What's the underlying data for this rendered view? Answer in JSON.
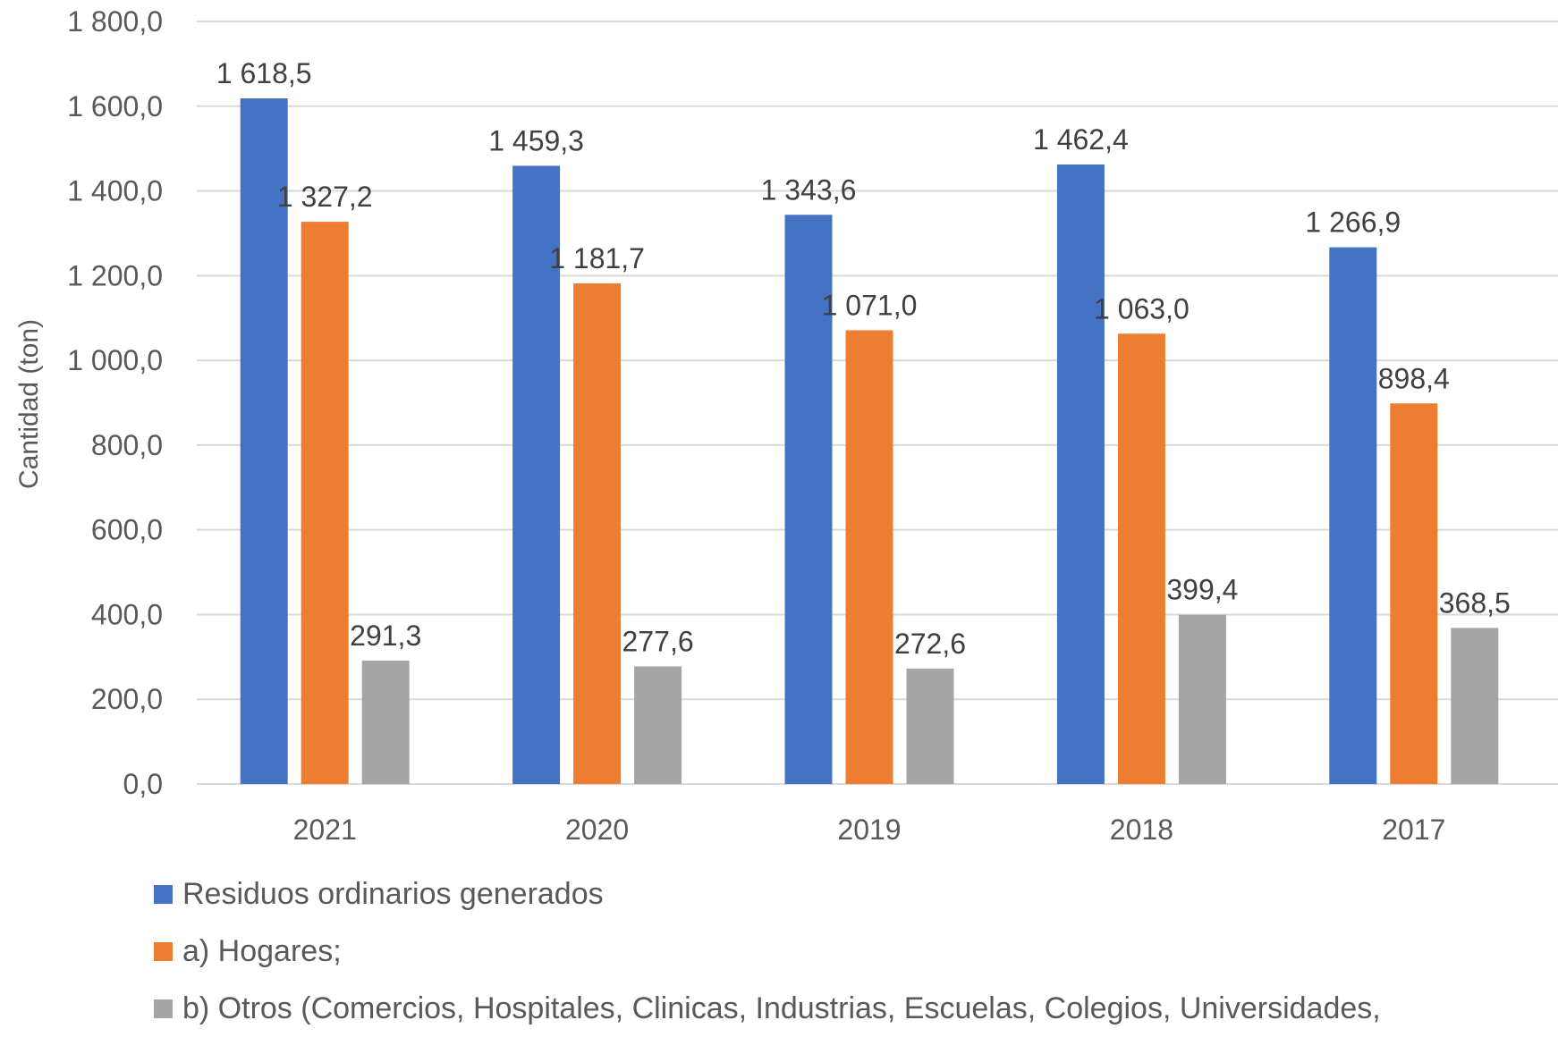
{
  "chart_data": {
    "type": "bar",
    "categories": [
      "2021",
      "2020",
      "2019",
      "2018",
      "2017"
    ],
    "series": [
      {
        "name": "Residuos ordinarios generados",
        "color": "#4472C4",
        "values": [
          1618.5,
          1459.3,
          1343.6,
          1462.4,
          1266.9
        ],
        "labels": [
          "1 618,5",
          "1 459,3",
          "1 343,6",
          "1 462,4",
          "1 266,9"
        ]
      },
      {
        "name": "a) Hogares;",
        "color": "#ED7D31",
        "values": [
          1327.2,
          1181.7,
          1071.0,
          1063.0,
          898.4
        ],
        "labels": [
          "1 327,2",
          "1 181,7",
          "1 071,0",
          "1 063,0",
          "898,4"
        ]
      },
      {
        "name": "b) Otros (Comercios, Hospitales, Clinicas, Industrias, Escuelas, Colegios, Universidades,",
        "color": "#A5A5A5",
        "values": [
          291.3,
          277.6,
          272.6,
          399.4,
          368.5
        ],
        "labels": [
          "291,3",
          "277,6",
          "272,6",
          "399,4",
          "368,5"
        ]
      }
    ],
    "ylabel": "Cantidad (ton)",
    "ylim": [
      0,
      1800
    ],
    "yticks": [
      0,
      200,
      400,
      600,
      800,
      1000,
      1200,
      1400,
      1600,
      1800
    ],
    "ytick_labels": [
      "0,0",
      "200,0",
      "400,0",
      "600,0",
      "800,0",
      "1 000,0",
      "1 200,0",
      "1 400,0",
      "1 600,0",
      "1 800,0"
    ],
    "grid": true,
    "legend_position": "bottom-left"
  }
}
